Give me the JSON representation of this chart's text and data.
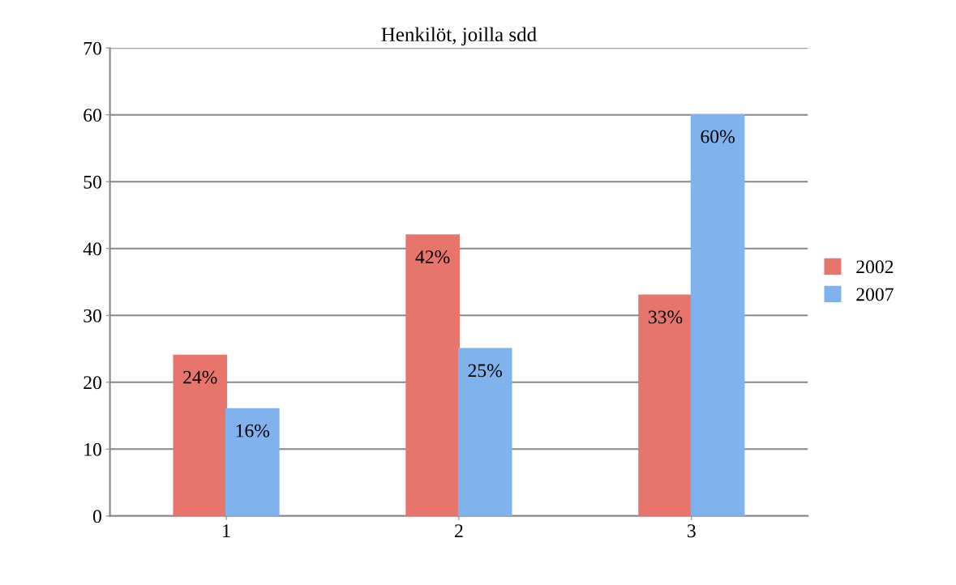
{
  "chart_data": {
    "type": "bar",
    "title": "Henkilöt, joilla sdd",
    "categories": [
      "1",
      "2",
      "3"
    ],
    "series": [
      {
        "name": "2002",
        "color": "#e8756c",
        "values": [
          24,
          42,
          33
        ],
        "value_labels": [
          "24%",
          "42%",
          "33%"
        ]
      },
      {
        "name": "2007",
        "color": "#80b2ee",
        "values": [
          16,
          25,
          60
        ],
        "value_labels": [
          "16%",
          "25%",
          "60%"
        ]
      }
    ],
    "ylim": [
      0,
      70
    ],
    "yticks": [
      0,
      10,
      20,
      30,
      40,
      50,
      60,
      70
    ],
    "grid": "y",
    "legend": "right"
  }
}
